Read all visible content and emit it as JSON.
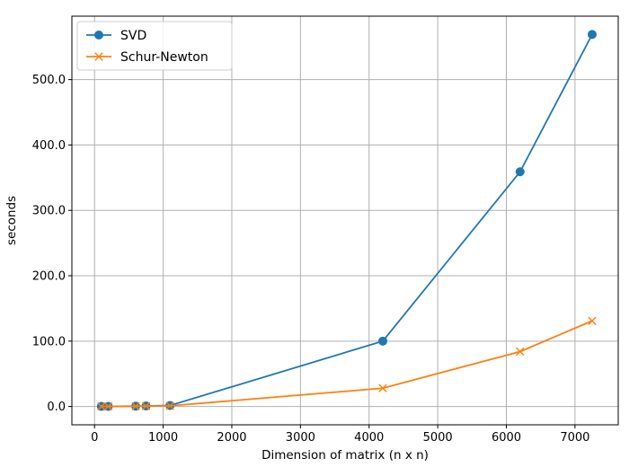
{
  "chart_data": {
    "type": "line",
    "title": "",
    "xlabel": "Dimension of matrix (n x n)",
    "ylabel": "seconds",
    "xlim": [
      -330,
      7630
    ],
    "ylim": [
      -28,
      597
    ],
    "x_ticks": [
      0,
      1000,
      2000,
      3000,
      4000,
      5000,
      6000,
      7000
    ],
    "x_tick_labels": [
      "0",
      "1000",
      "2000",
      "3000",
      "4000",
      "5000",
      "6000",
      "7000"
    ],
    "y_ticks": [
      0,
      100,
      200,
      300,
      400,
      500
    ],
    "y_tick_labels": [
      "0.0",
      "100.0",
      "200.0",
      "300.0",
      "400.0",
      "500.0"
    ],
    "grid": true,
    "legend_position": "top-left",
    "series": [
      {
        "name": "SVD",
        "color": "#1f77b4",
        "marker": "circle",
        "x": [
          100,
          200,
          600,
          750,
          1100,
          4200,
          6200,
          7250
        ],
        "y": [
          0.1,
          0.2,
          0.5,
          0.8,
          1.5,
          100,
          359,
          569
        ]
      },
      {
        "name": "Schur-Newton",
        "color": "#ff7f0e",
        "marker": "x",
        "x": [
          100,
          200,
          600,
          750,
          1100,
          4200,
          6200,
          7250
        ],
        "y": [
          0.1,
          0.2,
          0.4,
          0.6,
          1.0,
          28,
          84,
          131
        ]
      }
    ]
  }
}
